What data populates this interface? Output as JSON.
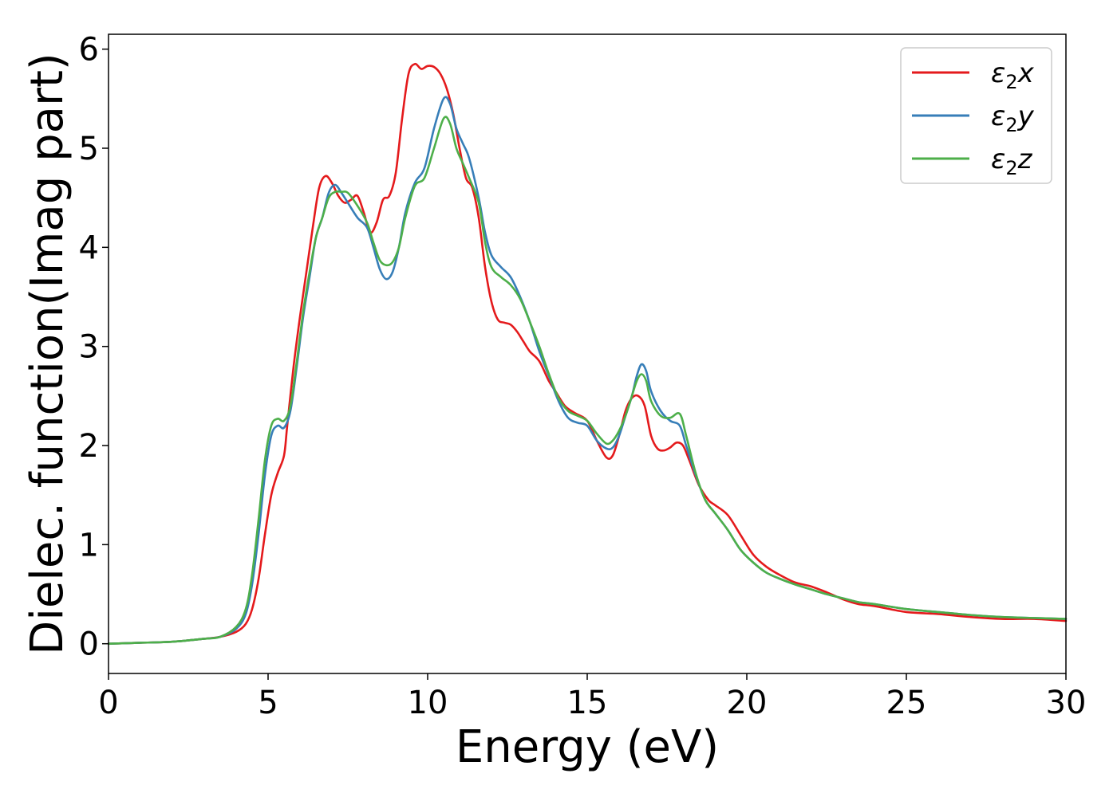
{
  "chart_data": {
    "type": "line",
    "xlabel": "Energy (eV)",
    "ylabel": "Dielec. function(Imag part)",
    "xlim": [
      0,
      30
    ],
    "ylim": [
      -0.3,
      6.15
    ],
    "xticks": [
      0,
      5,
      10,
      15,
      20,
      25,
      30
    ],
    "yticks": [
      0,
      1,
      2,
      3,
      4,
      5,
      6
    ],
    "xtick_labels": [
      "0",
      "5",
      "10",
      "15",
      "20",
      "25",
      "30"
    ],
    "ytick_labels": [
      "0",
      "1",
      "2",
      "3",
      "4",
      "5",
      "6"
    ],
    "grid": false,
    "legend_position": "top-right",
    "series": [
      {
        "name": "ε₂x",
        "legend_main": "ε",
        "legend_sub": "2",
        "legend_suffix": "x",
        "color": "#e41a1c",
        "points": [
          [
            0,
            0
          ],
          [
            1,
            0.01
          ],
          [
            2,
            0.02
          ],
          [
            3,
            0.05
          ],
          [
            3.5,
            0.07
          ],
          [
            4,
            0.12
          ],
          [
            4.3,
            0.2
          ],
          [
            4.5,
            0.35
          ],
          [
            4.7,
            0.65
          ],
          [
            4.9,
            1.1
          ],
          [
            5.1,
            1.5
          ],
          [
            5.3,
            1.72
          ],
          [
            5.5,
            1.9
          ],
          [
            5.6,
            2.2
          ],
          [
            5.8,
            2.8
          ],
          [
            6.0,
            3.3
          ],
          [
            6.2,
            3.75
          ],
          [
            6.4,
            4.2
          ],
          [
            6.6,
            4.6
          ],
          [
            6.8,
            4.72
          ],
          [
            7.0,
            4.65
          ],
          [
            7.2,
            4.52
          ],
          [
            7.4,
            4.45
          ],
          [
            7.6,
            4.48
          ],
          [
            7.8,
            4.52
          ],
          [
            8.0,
            4.35
          ],
          [
            8.2,
            4.15
          ],
          [
            8.4,
            4.25
          ],
          [
            8.6,
            4.48
          ],
          [
            8.8,
            4.52
          ],
          [
            9.0,
            4.75
          ],
          [
            9.2,
            5.3
          ],
          [
            9.4,
            5.75
          ],
          [
            9.6,
            5.85
          ],
          [
            9.8,
            5.8
          ],
          [
            10.0,
            5.83
          ],
          [
            10.2,
            5.82
          ],
          [
            10.4,
            5.75
          ],
          [
            10.6,
            5.6
          ],
          [
            10.8,
            5.35
          ],
          [
            11.0,
            5.0
          ],
          [
            11.2,
            4.7
          ],
          [
            11.4,
            4.6
          ],
          [
            11.6,
            4.3
          ],
          [
            11.8,
            3.8
          ],
          [
            12.0,
            3.45
          ],
          [
            12.2,
            3.27
          ],
          [
            12.4,
            3.24
          ],
          [
            12.6,
            3.22
          ],
          [
            12.8,
            3.15
          ],
          [
            13.0,
            3.05
          ],
          [
            13.2,
            2.95
          ],
          [
            13.5,
            2.85
          ],
          [
            13.8,
            2.65
          ],
          [
            14.0,
            2.55
          ],
          [
            14.3,
            2.4
          ],
          [
            14.6,
            2.33
          ],
          [
            15.0,
            2.25
          ],
          [
            15.3,
            2.05
          ],
          [
            15.6,
            1.88
          ],
          [
            15.8,
            1.9
          ],
          [
            16.0,
            2.1
          ],
          [
            16.2,
            2.35
          ],
          [
            16.4,
            2.48
          ],
          [
            16.6,
            2.5
          ],
          [
            16.8,
            2.4
          ],
          [
            17.0,
            2.1
          ],
          [
            17.2,
            1.97
          ],
          [
            17.4,
            1.95
          ],
          [
            17.6,
            1.98
          ],
          [
            17.8,
            2.03
          ],
          [
            18.0,
            2.0
          ],
          [
            18.2,
            1.85
          ],
          [
            18.5,
            1.6
          ],
          [
            18.8,
            1.45
          ],
          [
            19.0,
            1.4
          ],
          [
            19.4,
            1.3
          ],
          [
            19.8,
            1.1
          ],
          [
            20.2,
            0.9
          ],
          [
            20.6,
            0.78
          ],
          [
            21.0,
            0.7
          ],
          [
            21.5,
            0.62
          ],
          [
            22.0,
            0.58
          ],
          [
            22.5,
            0.52
          ],
          [
            23.0,
            0.45
          ],
          [
            23.5,
            0.4
          ],
          [
            24.0,
            0.38
          ],
          [
            25.0,
            0.32
          ],
          [
            26.0,
            0.3
          ],
          [
            27.0,
            0.27
          ],
          [
            28.0,
            0.25
          ],
          [
            29.0,
            0.25
          ],
          [
            30.0,
            0.23
          ]
        ]
      },
      {
        "name": "ε₂y",
        "legend_main": "ε",
        "legend_sub": "2",
        "legend_suffix": "y",
        "color": "#377eb8",
        "points": [
          [
            0,
            0
          ],
          [
            1,
            0.01
          ],
          [
            2,
            0.02
          ],
          [
            3,
            0.05
          ],
          [
            3.5,
            0.07
          ],
          [
            4,
            0.15
          ],
          [
            4.3,
            0.3
          ],
          [
            4.5,
            0.6
          ],
          [
            4.7,
            1.1
          ],
          [
            4.9,
            1.7
          ],
          [
            5.1,
            2.1
          ],
          [
            5.3,
            2.2
          ],
          [
            5.5,
            2.18
          ],
          [
            5.7,
            2.35
          ],
          [
            5.9,
            2.8
          ],
          [
            6.1,
            3.3
          ],
          [
            6.3,
            3.7
          ],
          [
            6.5,
            4.1
          ],
          [
            6.7,
            4.3
          ],
          [
            6.9,
            4.55
          ],
          [
            7.1,
            4.63
          ],
          [
            7.3,
            4.55
          ],
          [
            7.5,
            4.45
          ],
          [
            7.8,
            4.3
          ],
          [
            8.1,
            4.2
          ],
          [
            8.3,
            4.0
          ],
          [
            8.5,
            3.78
          ],
          [
            8.7,
            3.68
          ],
          [
            8.9,
            3.75
          ],
          [
            9.1,
            4.0
          ],
          [
            9.3,
            4.35
          ],
          [
            9.6,
            4.65
          ],
          [
            9.9,
            4.8
          ],
          [
            10.2,
            5.2
          ],
          [
            10.5,
            5.5
          ],
          [
            10.7,
            5.45
          ],
          [
            10.9,
            5.2
          ],
          [
            11.1,
            5.05
          ],
          [
            11.3,
            4.9
          ],
          [
            11.6,
            4.5
          ],
          [
            11.8,
            4.15
          ],
          [
            12.0,
            3.92
          ],
          [
            12.3,
            3.8
          ],
          [
            12.6,
            3.7
          ],
          [
            12.9,
            3.5
          ],
          [
            13.2,
            3.25
          ],
          [
            13.5,
            2.95
          ],
          [
            13.8,
            2.7
          ],
          [
            14.1,
            2.45
          ],
          [
            14.4,
            2.28
          ],
          [
            14.7,
            2.23
          ],
          [
            15.0,
            2.2
          ],
          [
            15.3,
            2.05
          ],
          [
            15.6,
            1.97
          ],
          [
            15.8,
            1.98
          ],
          [
            16.0,
            2.1
          ],
          [
            16.2,
            2.3
          ],
          [
            16.4,
            2.5
          ],
          [
            16.55,
            2.7
          ],
          [
            16.7,
            2.82
          ],
          [
            16.85,
            2.75
          ],
          [
            17.0,
            2.55
          ],
          [
            17.3,
            2.35
          ],
          [
            17.6,
            2.25
          ],
          [
            17.9,
            2.2
          ],
          [
            18.1,
            2.0
          ],
          [
            18.4,
            1.7
          ],
          [
            18.7,
            1.45
          ],
          [
            19.0,
            1.32
          ],
          [
            19.4,
            1.15
          ],
          [
            19.8,
            0.95
          ],
          [
            20.2,
            0.82
          ],
          [
            20.6,
            0.72
          ],
          [
            21.0,
            0.66
          ],
          [
            21.5,
            0.6
          ],
          [
            22.0,
            0.55
          ],
          [
            22.5,
            0.5
          ],
          [
            23.0,
            0.46
          ],
          [
            23.5,
            0.42
          ],
          [
            24.0,
            0.4
          ],
          [
            25.0,
            0.35
          ],
          [
            26.0,
            0.32
          ],
          [
            27.0,
            0.29
          ],
          [
            28.0,
            0.27
          ],
          [
            29.0,
            0.26
          ],
          [
            30.0,
            0.25
          ]
        ]
      },
      {
        "name": "ε₂z",
        "legend_main": "ε",
        "legend_sub": "2",
        "legend_suffix": "z",
        "color": "#4daf4a",
        "points": [
          [
            0,
            0
          ],
          [
            1,
            0.01
          ],
          [
            2,
            0.02
          ],
          [
            3,
            0.05
          ],
          [
            3.5,
            0.07
          ],
          [
            4,
            0.17
          ],
          [
            4.3,
            0.35
          ],
          [
            4.5,
            0.7
          ],
          [
            4.7,
            1.25
          ],
          [
            4.9,
            1.85
          ],
          [
            5.1,
            2.2
          ],
          [
            5.3,
            2.27
          ],
          [
            5.5,
            2.25
          ],
          [
            5.7,
            2.4
          ],
          [
            5.9,
            2.85
          ],
          [
            6.1,
            3.35
          ],
          [
            6.3,
            3.75
          ],
          [
            6.5,
            4.1
          ],
          [
            6.7,
            4.3
          ],
          [
            6.9,
            4.5
          ],
          [
            7.1,
            4.56
          ],
          [
            7.3,
            4.56
          ],
          [
            7.5,
            4.55
          ],
          [
            7.8,
            4.42
          ],
          [
            8.1,
            4.25
          ],
          [
            8.3,
            4.05
          ],
          [
            8.5,
            3.87
          ],
          [
            8.7,
            3.82
          ],
          [
            8.9,
            3.85
          ],
          [
            9.1,
            4.0
          ],
          [
            9.3,
            4.3
          ],
          [
            9.6,
            4.62
          ],
          [
            9.9,
            4.7
          ],
          [
            10.2,
            5.0
          ],
          [
            10.5,
            5.3
          ],
          [
            10.7,
            5.25
          ],
          [
            10.9,
            5.0
          ],
          [
            11.1,
            4.85
          ],
          [
            11.3,
            4.7
          ],
          [
            11.6,
            4.45
          ],
          [
            11.8,
            4.05
          ],
          [
            12.0,
            3.8
          ],
          [
            12.3,
            3.7
          ],
          [
            12.6,
            3.62
          ],
          [
            12.9,
            3.48
          ],
          [
            13.2,
            3.25
          ],
          [
            13.5,
            3.0
          ],
          [
            13.8,
            2.72
          ],
          [
            14.1,
            2.48
          ],
          [
            14.4,
            2.35
          ],
          [
            14.7,
            2.3
          ],
          [
            15.0,
            2.25
          ],
          [
            15.3,
            2.12
          ],
          [
            15.6,
            2.02
          ],
          [
            15.8,
            2.05
          ],
          [
            16.0,
            2.15
          ],
          [
            16.2,
            2.3
          ],
          [
            16.4,
            2.5
          ],
          [
            16.55,
            2.65
          ],
          [
            16.7,
            2.72
          ],
          [
            16.85,
            2.65
          ],
          [
            17.0,
            2.45
          ],
          [
            17.3,
            2.3
          ],
          [
            17.6,
            2.28
          ],
          [
            17.9,
            2.32
          ],
          [
            18.1,
            2.1
          ],
          [
            18.4,
            1.72
          ],
          [
            18.7,
            1.45
          ],
          [
            19.0,
            1.32
          ],
          [
            19.4,
            1.15
          ],
          [
            19.8,
            0.95
          ],
          [
            20.2,
            0.82
          ],
          [
            20.6,
            0.72
          ],
          [
            21.0,
            0.66
          ],
          [
            21.5,
            0.6
          ],
          [
            22.0,
            0.55
          ],
          [
            22.5,
            0.5
          ],
          [
            23.0,
            0.46
          ],
          [
            23.5,
            0.42
          ],
          [
            24.0,
            0.4
          ],
          [
            25.0,
            0.35
          ],
          [
            26.0,
            0.32
          ],
          [
            27.0,
            0.29
          ],
          [
            28.0,
            0.27
          ],
          [
            29.0,
            0.26
          ],
          [
            30.0,
            0.25
          ]
        ]
      }
    ]
  }
}
